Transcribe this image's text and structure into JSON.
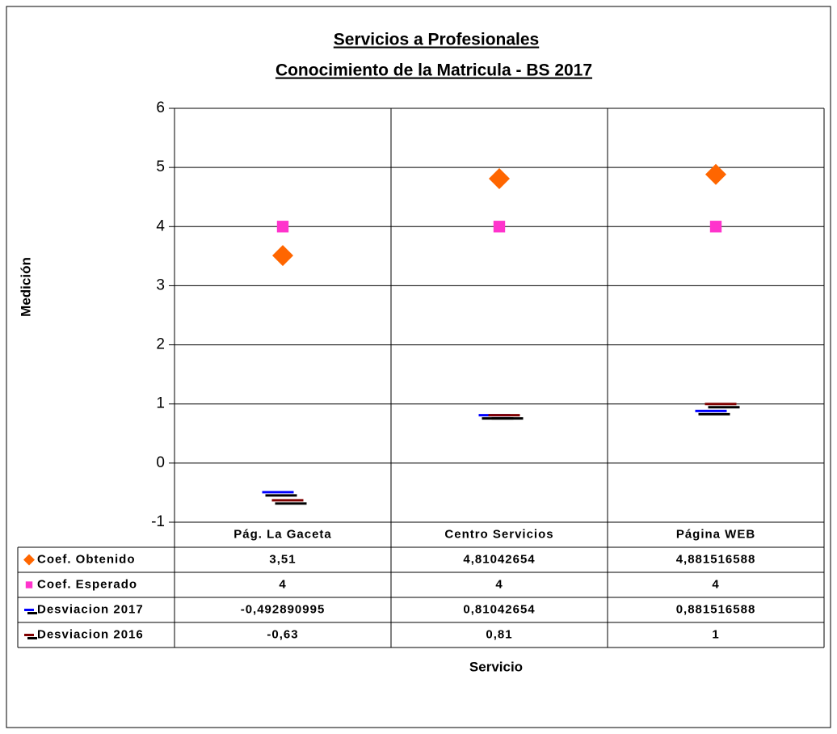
{
  "chart_data": {
    "type": "scatter",
    "title": "Servicios a Profesionales",
    "subtitle": "Conocimiento de la Matricula - BS 2017",
    "y_label": "Medición",
    "x_label": "Servicio",
    "categories": [
      "Pág. La Gaceta",
      "Centro Servicios",
      "Página WEB"
    ],
    "series": [
      {
        "name": "Coef. Obtenido",
        "color": "#ff6600",
        "marker": "diamond",
        "values": [
          3.51,
          4.81042654,
          4.881516588
        ],
        "value_labels": [
          "3,51",
          "4,81042654",
          "4,881516588"
        ]
      },
      {
        "name": "Coef. Esperado",
        "color": "#ff33cc",
        "marker": "square",
        "values": [
          4,
          4,
          4
        ]
      },
      {
        "name": "Desviacion 2017",
        "color": "#0000ff",
        "marker": "dash",
        "values": [
          -0.492890995,
          0.81042654,
          0.881516588
        ],
        "value_labels": [
          "-0,492890995",
          "0,81042654",
          "0,881516588"
        ]
      },
      {
        "name": "Desviacion 2016",
        "color": "#800000",
        "marker": "dash",
        "values": [
          -0.63,
          0.81,
          1
        ],
        "value_labels": [
          "-0,63",
          "0,81",
          "1"
        ]
      }
    ],
    "ylim": [
      -1,
      6
    ],
    "yticks": [
      -1,
      0,
      1,
      2,
      3,
      4,
      5,
      6
    ],
    "grid": true
  }
}
